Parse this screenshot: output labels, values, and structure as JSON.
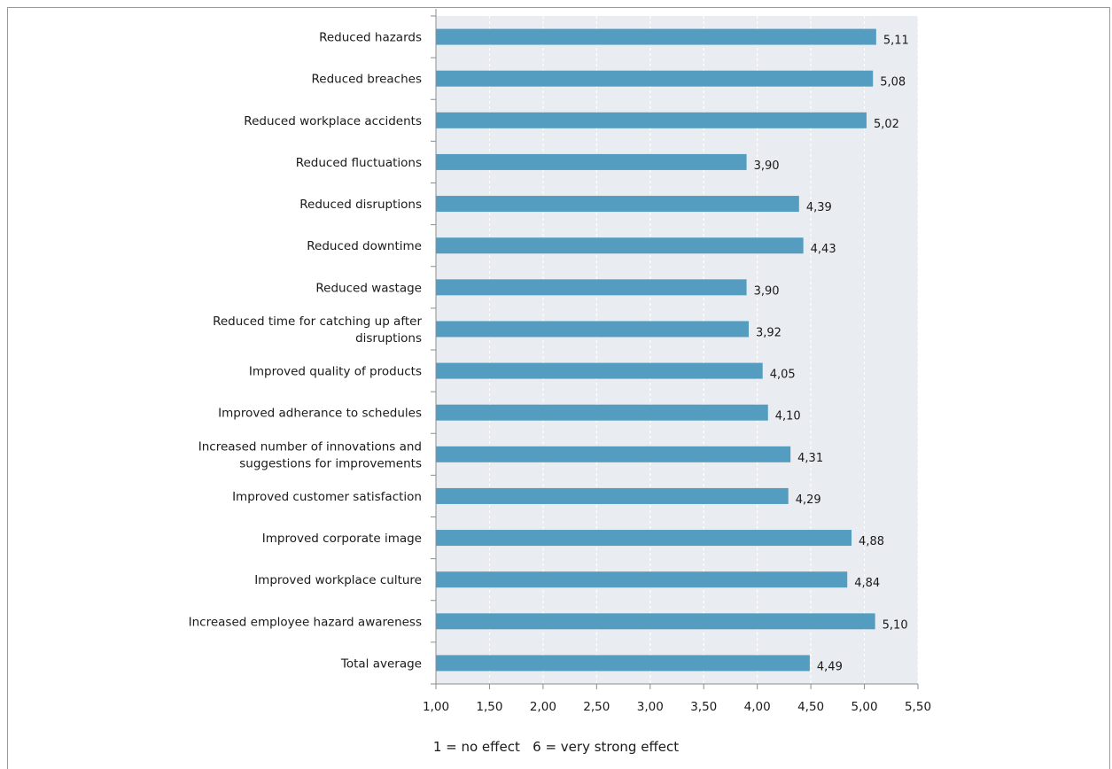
{
  "chart_data": {
    "type": "bar",
    "orientation": "horizontal",
    "categories": [
      "Reduced hazards",
      "Reduced breaches",
      "Reduced workplace accidents",
      "Reduced fluctuations",
      "Reduced disruptions",
      "Reduced downtime",
      "Reduced wastage",
      "Reduced time for catching up after disruptions",
      "Improved quality of products",
      "Improved adherance to schedules",
      "Increased number of innovations and suggestions for improvements",
      "Improved customer satisfaction",
      "Improved corporate image",
      "Improved workplace culture",
      "Increased employee hazard awareness",
      "Total average"
    ],
    "values": [
      5.11,
      5.08,
      5.02,
      3.9,
      4.39,
      4.43,
      3.9,
      3.92,
      4.05,
      4.1,
      4.31,
      4.29,
      4.88,
      4.84,
      5.1,
      4.49
    ],
    "value_labels": [
      "5,11",
      "5,08",
      "5,02",
      "3,90",
      "4,39",
      "4,43",
      "3,90",
      "3,92",
      "4,05",
      "4,10",
      "4,31",
      "4,29",
      "4,88",
      "4,84",
      "5,10",
      "4,49"
    ],
    "xlim": [
      1.0,
      5.5
    ],
    "x_ticks": [
      1.0,
      1.5,
      2.0,
      2.5,
      3.0,
      3.5,
      4.0,
      4.5,
      5.0,
      5.5
    ],
    "x_tick_labels": [
      "1,00",
      "1,50",
      "2,00",
      "2,50",
      "3,00",
      "3,50",
      "4,00",
      "4,50",
      "5,00",
      "5,50"
    ],
    "grid": "vertical dashed",
    "title": "",
    "xlabel": "",
    "ylabel": "",
    "colors": {
      "bar": "#559dc0",
      "plot_background": "#e9ecf0",
      "grid": "#ffffff",
      "axis": "#8c8c8c"
    }
  },
  "footnote": "1 = no effect   6 = very strong effect"
}
